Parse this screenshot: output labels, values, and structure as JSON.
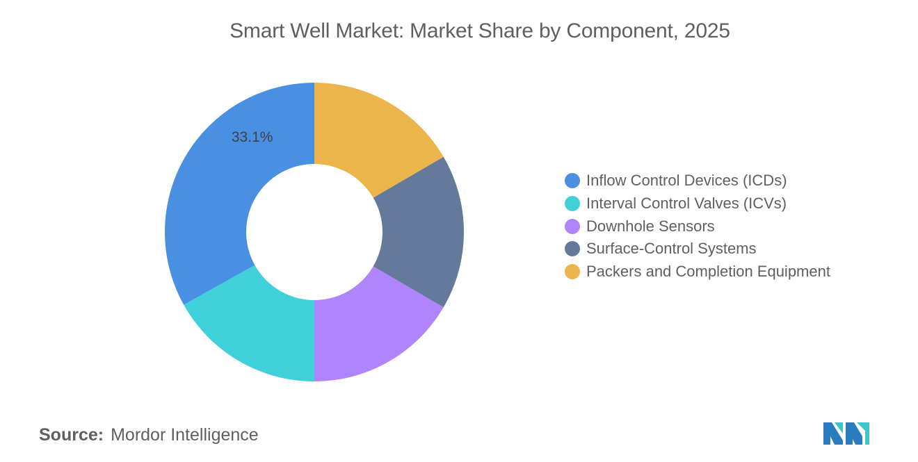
{
  "title": "Smart Well Market: Market Share by Component, 2025",
  "source": {
    "label": "Source:",
    "value": "Mordor Intelligence"
  },
  "logo": {
    "icon": "mordor-intelligence-logo-icon",
    "colors": [
      "#2b7bbf",
      "#3fc5c9"
    ]
  },
  "chart_data": {
    "type": "pie",
    "variant": "donut",
    "title": "Smart Well Market: Market Share by Component, 2025",
    "legend_position": "right",
    "start": "12 o'clock",
    "direction": "clockwise",
    "series": [
      {
        "name": "Inflow Control Devices (ICDs)",
        "value": 33.1,
        "color": "#4a90e2",
        "label": "33.1%"
      },
      {
        "name": "Interval Control Valves (ICVs)",
        "value": 16.9,
        "color": "#40d0da",
        "label": ""
      },
      {
        "name": "Downhole Sensors",
        "value": 16.6,
        "color": "#b084fb",
        "label": ""
      },
      {
        "name": "Surface-Control Systems",
        "value": 16.8,
        "color": "#65799b",
        "label": ""
      },
      {
        "name": "Packers and Completion Equipment",
        "value": 16.6,
        "color": "#ebb54b",
        "label": ""
      }
    ],
    "draw_order": [
      4,
      3,
      2,
      1,
      0
    ]
  }
}
